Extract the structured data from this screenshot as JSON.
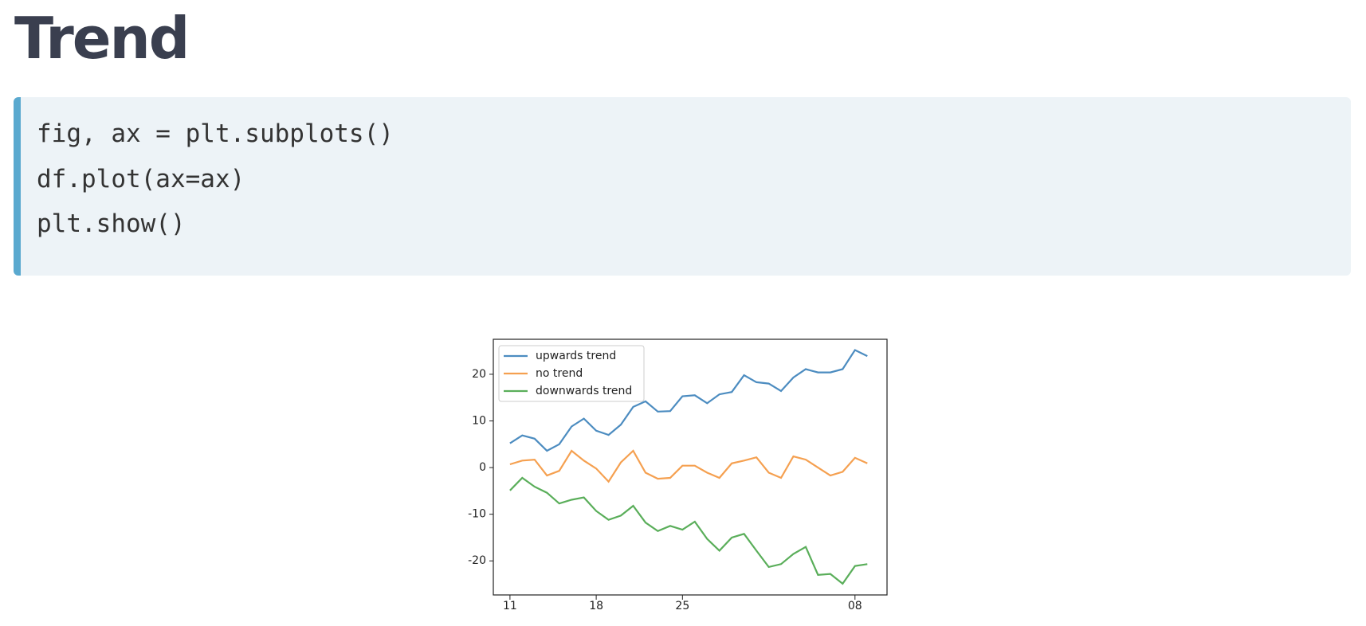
{
  "title": "Trend",
  "code": [
    "fig, ax = plt.subplots()",
    "df.plot(ax=ax)",
    "plt.show()"
  ],
  "chart_data": {
    "type": "line",
    "categories": [
      "11",
      null,
      null,
      null,
      null,
      null,
      null,
      "18",
      null,
      null,
      null,
      null,
      null,
      null,
      "25",
      null,
      null,
      null,
      null,
      null,
      null,
      null,
      null,
      null,
      null,
      null,
      null,
      null,
      "08",
      null
    ],
    "xlim": [
      -1.35,
      30.6
    ],
    "ylim": [
      -27.3,
      27.5
    ],
    "yticks": [
      -20,
      -10,
      0,
      10,
      20
    ],
    "legend": "upper-left",
    "series": [
      {
        "name": "upwards trend",
        "color": "#4c8cc0",
        "values": [
          5.2,
          6.9,
          6.2,
          3.6,
          5.0,
          8.8,
          10.5,
          7.9,
          7.0,
          9.2,
          13.0,
          14.2,
          12.0,
          12.1,
          15.3,
          15.5,
          13.8,
          15.7,
          16.2,
          19.8,
          18.3,
          18.0,
          16.4,
          19.3,
          21.1,
          20.4,
          20.4,
          21.1,
          25.2,
          23.9
        ]
      },
      {
        "name": "no trend",
        "color": "#f5a050",
        "values": [
          0.7,
          1.5,
          1.7,
          -1.7,
          -0.7,
          3.6,
          1.5,
          -0.2,
          -3.0,
          1.1,
          3.6,
          -1.1,
          -2.4,
          -2.2,
          0.4,
          0.4,
          -1.1,
          -2.2,
          0.9,
          1.5,
          2.2,
          -1.1,
          -2.2,
          2.4,
          1.7,
          0,
          -1.7,
          -0.9,
          2.1,
          0.9
        ]
      },
      {
        "name": "downwards trend",
        "color": "#5aae5a",
        "values": [
          -4.9,
          -2.2,
          -4.1,
          -5.4,
          -7.7,
          -6.9,
          -6.4,
          -9.3,
          -11.2,
          -10.3,
          -8.2,
          -11.8,
          -13.6,
          -12.5,
          -13.3,
          -11.6,
          -15.3,
          -17.8,
          -15.0,
          -14.2,
          -17.8,
          -21.3,
          -20.7,
          -18.5,
          -17.0,
          -23.0,
          -22.8,
          -24.9,
          -21.1,
          -20.7
        ]
      }
    ]
  }
}
